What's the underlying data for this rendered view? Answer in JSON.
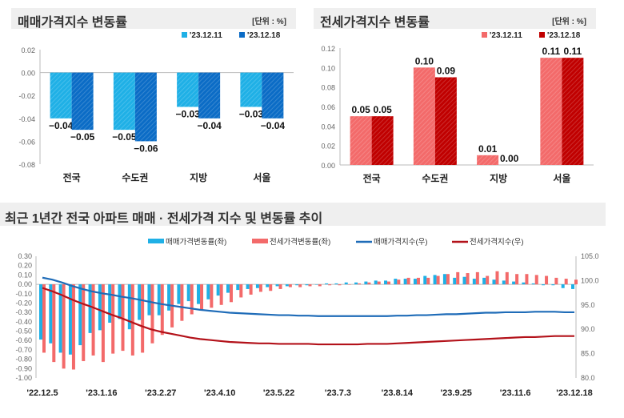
{
  "colors": {
    "sale_light": "#1fb0e6",
    "sale_dark": "#0b6cc6",
    "rent_light": "#f36a6a",
    "rent_dark": "#c00000",
    "sale_line": "#1f6cb8",
    "rent_line": "#b3121a"
  },
  "chart_data": [
    {
      "type": "bar",
      "title": "매매가격지수 변동률",
      "unit": "[단위 : %]",
      "categories": [
        "전국",
        "수도권",
        "지방",
        "서울"
      ],
      "series": [
        {
          "name": "'23.12.11",
          "values": [
            -0.04,
            -0.05,
            -0.03,
            -0.03
          ]
        },
        {
          "name": "'23.12.18",
          "values": [
            -0.05,
            -0.06,
            -0.04,
            -0.04
          ]
        }
      ],
      "ylim": [
        -0.08,
        0.02
      ],
      "yticks": [
        "0.02",
        "0.00",
        "-0.02",
        "-0.04",
        "-0.06",
        "-0.08"
      ],
      "legend": "top-right"
    },
    {
      "type": "bar",
      "title": "전세가격지수 변동률",
      "unit": "[단위 : %]",
      "categories": [
        "전국",
        "수도권",
        "지방",
        "서울"
      ],
      "series": [
        {
          "name": "'23.12.11",
          "values": [
            0.05,
            0.1,
            0.01,
            0.11
          ]
        },
        {
          "name": "'23.12.18",
          "values": [
            0.05,
            0.09,
            0.0,
            0.11
          ]
        }
      ],
      "ylim": [
        0,
        0.12
      ],
      "yticks": [
        "0.12",
        "0.10",
        "0.08",
        "0.06",
        "0.04",
        "0.02",
        "0.00"
      ],
      "legend": "top-right"
    },
    {
      "type": "bar+line",
      "title": "최근 1년간 전국 아파트 매매 · 전세가격 지수 및 변동률 추이",
      "xticks": [
        "'22.12.5",
        "'23.1.16",
        "'23.2.27",
        "'23.4.10",
        "'23.5.22",
        "'23.7.3",
        "'23.8.14",
        "'23.9.25",
        "'23.11.6",
        "'23.12.18"
      ],
      "ylim_left": [
        -1.0,
        0.3
      ],
      "yticks_left": [
        "0.30",
        "0.20",
        "0.10",
        "0.00",
        "-0.10",
        "-0.20",
        "-0.30",
        "-0.40",
        "-0.50",
        "-0.60",
        "-0.70",
        "-0.80",
        "-0.90",
        "-1.00"
      ],
      "ylim_right": [
        80,
        105
      ],
      "yticks_right": [
        "105.0",
        "100.0",
        "95.0",
        "90.0",
        "85.0",
        "80.0"
      ],
      "legend": "top",
      "series": [
        {
          "name": "매매가격변동률(좌)",
          "type": "bar",
          "axis": "left",
          "values": [
            -0.59,
            -0.63,
            -0.73,
            -0.75,
            -0.65,
            -0.52,
            -0.49,
            -0.41,
            -0.37,
            -0.48,
            -0.38,
            -0.33,
            -0.33,
            -0.28,
            -0.21,
            -0.18,
            -0.21,
            -0.16,
            -0.12,
            -0.09,
            -0.06,
            -0.05,
            -0.04,
            -0.03,
            -0.02,
            -0.02,
            -0.01,
            -0.01,
            0.0,
            0.01,
            0.01,
            0.02,
            0.02,
            0.03,
            0.04,
            0.04,
            0.06,
            0.06,
            0.06,
            0.09,
            0.1,
            0.11,
            0.07,
            0.08,
            0.06,
            0.07,
            0.05,
            0.04,
            0.03,
            0.02,
            0.01,
            -0.01,
            -0.01,
            -0.04,
            -0.05
          ]
        },
        {
          "name": "전세가격변동률(좌)",
          "type": "bar",
          "axis": "left",
          "values": [
            -0.73,
            -0.83,
            -0.9,
            -0.91,
            -0.82,
            -0.76,
            -0.83,
            -0.74,
            -0.71,
            -0.76,
            -0.73,
            -0.63,
            -0.54,
            -0.46,
            -0.39,
            -0.32,
            -0.27,
            -0.25,
            -0.22,
            -0.19,
            -0.14,
            -0.11,
            -0.08,
            -0.07,
            -0.05,
            -0.03,
            -0.03,
            -0.02,
            -0.02,
            -0.01,
            -0.01,
            0.0,
            0.01,
            0.02,
            0.03,
            0.03,
            0.05,
            0.07,
            0.07,
            0.07,
            0.09,
            0.11,
            0.13,
            0.12,
            0.13,
            0.09,
            0.14,
            0.13,
            0.11,
            0.11,
            0.1,
            0.09,
            0.07,
            0.06,
            0.05
          ]
        },
        {
          "name": "매매가격지수(우)",
          "type": "line",
          "axis": "right",
          "values": [
            100.6,
            100.2,
            99.6,
            98.9,
            98.3,
            97.8,
            97.4,
            97.1,
            96.7,
            96.4,
            96.0,
            95.6,
            95.2,
            94.9,
            94.6,
            94.3,
            94.0,
            93.8,
            93.6,
            93.4,
            93.3,
            93.2,
            93.1,
            93.0,
            92.9,
            92.9,
            92.8,
            92.8,
            92.7,
            92.7,
            92.7,
            92.7,
            92.7,
            92.7,
            92.7,
            92.7,
            92.8,
            92.8,
            92.9,
            92.9,
            93.0,
            93.1,
            93.1,
            93.2,
            93.3,
            93.4,
            93.4,
            93.5,
            93.5,
            93.5,
            93.6,
            93.6,
            93.6,
            93.5,
            93.5
          ]
        },
        {
          "name": "전세가격지수(우)",
          "type": "line",
          "axis": "right",
          "values": [
            98.5,
            97.8,
            97.0,
            96.1,
            95.3,
            94.6,
            93.8,
            93.0,
            92.3,
            91.5,
            90.7,
            90.0,
            89.5,
            89.1,
            88.7,
            88.3,
            88.0,
            87.8,
            87.6,
            87.4,
            87.3,
            87.2,
            87.1,
            87.1,
            87.0,
            87.0,
            87.0,
            87.0,
            86.9,
            86.9,
            86.9,
            86.9,
            86.9,
            87.0,
            87.0,
            87.0,
            87.1,
            87.2,
            87.3,
            87.4,
            87.5,
            87.6,
            87.7,
            87.8,
            87.9,
            88.0,
            88.1,
            88.2,
            88.3,
            88.4,
            88.4,
            88.5,
            88.6,
            88.6,
            88.6
          ]
        }
      ]
    }
  ]
}
